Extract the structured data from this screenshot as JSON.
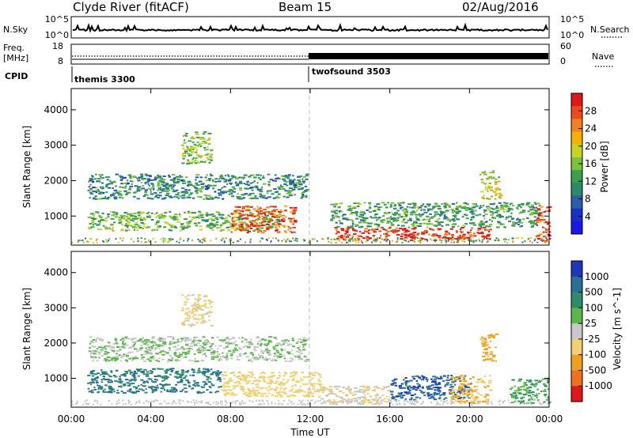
{
  "header": {
    "station": "Clyde River (fitACF)",
    "beam": "Beam 15",
    "date": "02/Aug/2016"
  },
  "strip_panels": {
    "nsky_label": "N.Sky",
    "nsky_ticks": [
      "10^5",
      "10^0"
    ],
    "nsearch_label": "N.Search",
    "nsearch_ticks": [
      "10^5",
      "10^0"
    ],
    "freq_label_line1": "Freq.",
    "freq_label_line2": "[MHz]",
    "freq_ticks": [
      "18",
      "8"
    ],
    "nave_label": "Nave",
    "nave_ticks": [
      "60",
      "0"
    ],
    "cpid_label": "CPID",
    "cpid_segments": [
      {
        "name": "themis 3300",
        "start_hour": 0
      },
      {
        "name": "twofsound 3503",
        "start_hour": 12
      }
    ]
  },
  "chart_data": [
    {
      "type": "heatmap",
      "title": "",
      "xlabel": "Time UT",
      "ylabel": "Slant Range [km]",
      "xlim": [
        0,
        24
      ],
      "ylim": [
        180,
        4600
      ],
      "x_ticks": [
        "00:00",
        "04:00",
        "08:00",
        "12:00",
        "16:00",
        "20:00",
        "00:00"
      ],
      "y_ticks": [
        1000,
        2000,
        3000,
        4000
      ],
      "colorbar": {
        "label": "Power [dB]",
        "ticks": [
          "28",
          "24",
          "20",
          "16",
          "12",
          "8",
          "4"
        ],
        "range": [
          0,
          30
        ],
        "colors": [
          "#1818e8",
          "#1830c8",
          "#2a5fa8",
          "#2a8a6a",
          "#3aa04a",
          "#7cc23a",
          "#c8d424",
          "#f5b000",
          "#f08020",
          "#ec4a18",
          "#e01818"
        ]
      },
      "echo_regions": [
        {
          "hours": [
            0.8,
            11.8
          ],
          "range_km": [
            1500,
            2200
          ],
          "value_db": 10
        },
        {
          "hours": [
            0.8,
            10.5
          ],
          "range_km": [
            600,
            1150
          ],
          "value_db": 14
        },
        {
          "hours": [
            5.5,
            7.0
          ],
          "range_km": [
            2500,
            3400
          ],
          "value_db": 15
        },
        {
          "hours": [
            8.0,
            11.2
          ],
          "range_km": [
            550,
            1300
          ],
          "value_db": 26
        },
        {
          "hours": [
            13.2,
            21.0
          ],
          "range_km": [
            330,
            700
          ],
          "value_db": 28
        },
        {
          "hours": [
            13.0,
            23.5
          ],
          "range_km": [
            700,
            1400
          ],
          "value_db": 12
        },
        {
          "hours": [
            20.5,
            21.5
          ],
          "range_km": [
            1500,
            2300
          ],
          "value_db": 18
        },
        {
          "hours": [
            23.3,
            24.0
          ],
          "range_km": [
            300,
            1300
          ],
          "value_db": 26
        }
      ]
    },
    {
      "type": "heatmap",
      "title": "",
      "xlabel": "Time UT",
      "ylabel": "Slant Range [km]",
      "xlim": [
        0,
        24
      ],
      "ylim": [
        180,
        4600
      ],
      "x_ticks": [
        "00:00",
        "04:00",
        "08:00",
        "12:00",
        "16:00",
        "20:00",
        "00:00"
      ],
      "y_ticks": [
        1000,
        2000,
        3000,
        4000
      ],
      "colorbar": {
        "label": "Velocity [m s^-1]",
        "ticks": [
          "1000",
          "500",
          "100",
          "25",
          "-25",
          "-100",
          "-500",
          "-1000"
        ],
        "colors": [
          "#1a38b8",
          "#2a6e9a",
          "#2e8c6a",
          "#5ab84a",
          "#c8c8c8",
          "#f0d070",
          "#f0a020",
          "#f07020",
          "#e01818"
        ]
      },
      "echo_regions": [
        {
          "hours": [
            0.8,
            11.8
          ],
          "range_km": [
            1500,
            2200
          ],
          "velocity": 0
        },
        {
          "hours": [
            0.8,
            7.5
          ],
          "range_km": [
            600,
            1300
          ],
          "velocity": 300
        },
        {
          "hours": [
            5.5,
            7.0
          ],
          "range_km": [
            2500,
            3400
          ],
          "velocity": -80
        },
        {
          "hours": [
            7.5,
            12.5
          ],
          "range_km": [
            500,
            1200
          ],
          "velocity": -200
        },
        {
          "hours": [
            12.5,
            16.0
          ],
          "range_km": [
            300,
            800
          ],
          "velocity": -60
        },
        {
          "hours": [
            16.0,
            20.0
          ],
          "range_km": [
            400,
            1100
          ],
          "velocity": 600
        },
        {
          "hours": [
            19.0,
            21.0
          ],
          "range_km": [
            300,
            1100
          ],
          "velocity": -300
        },
        {
          "hours": [
            20.5,
            21.3
          ],
          "range_km": [
            1500,
            2300
          ],
          "velocity": -500
        },
        {
          "hours": [
            22.0,
            24.0
          ],
          "range_km": [
            300,
            1000
          ],
          "velocity": 50
        }
      ]
    }
  ]
}
